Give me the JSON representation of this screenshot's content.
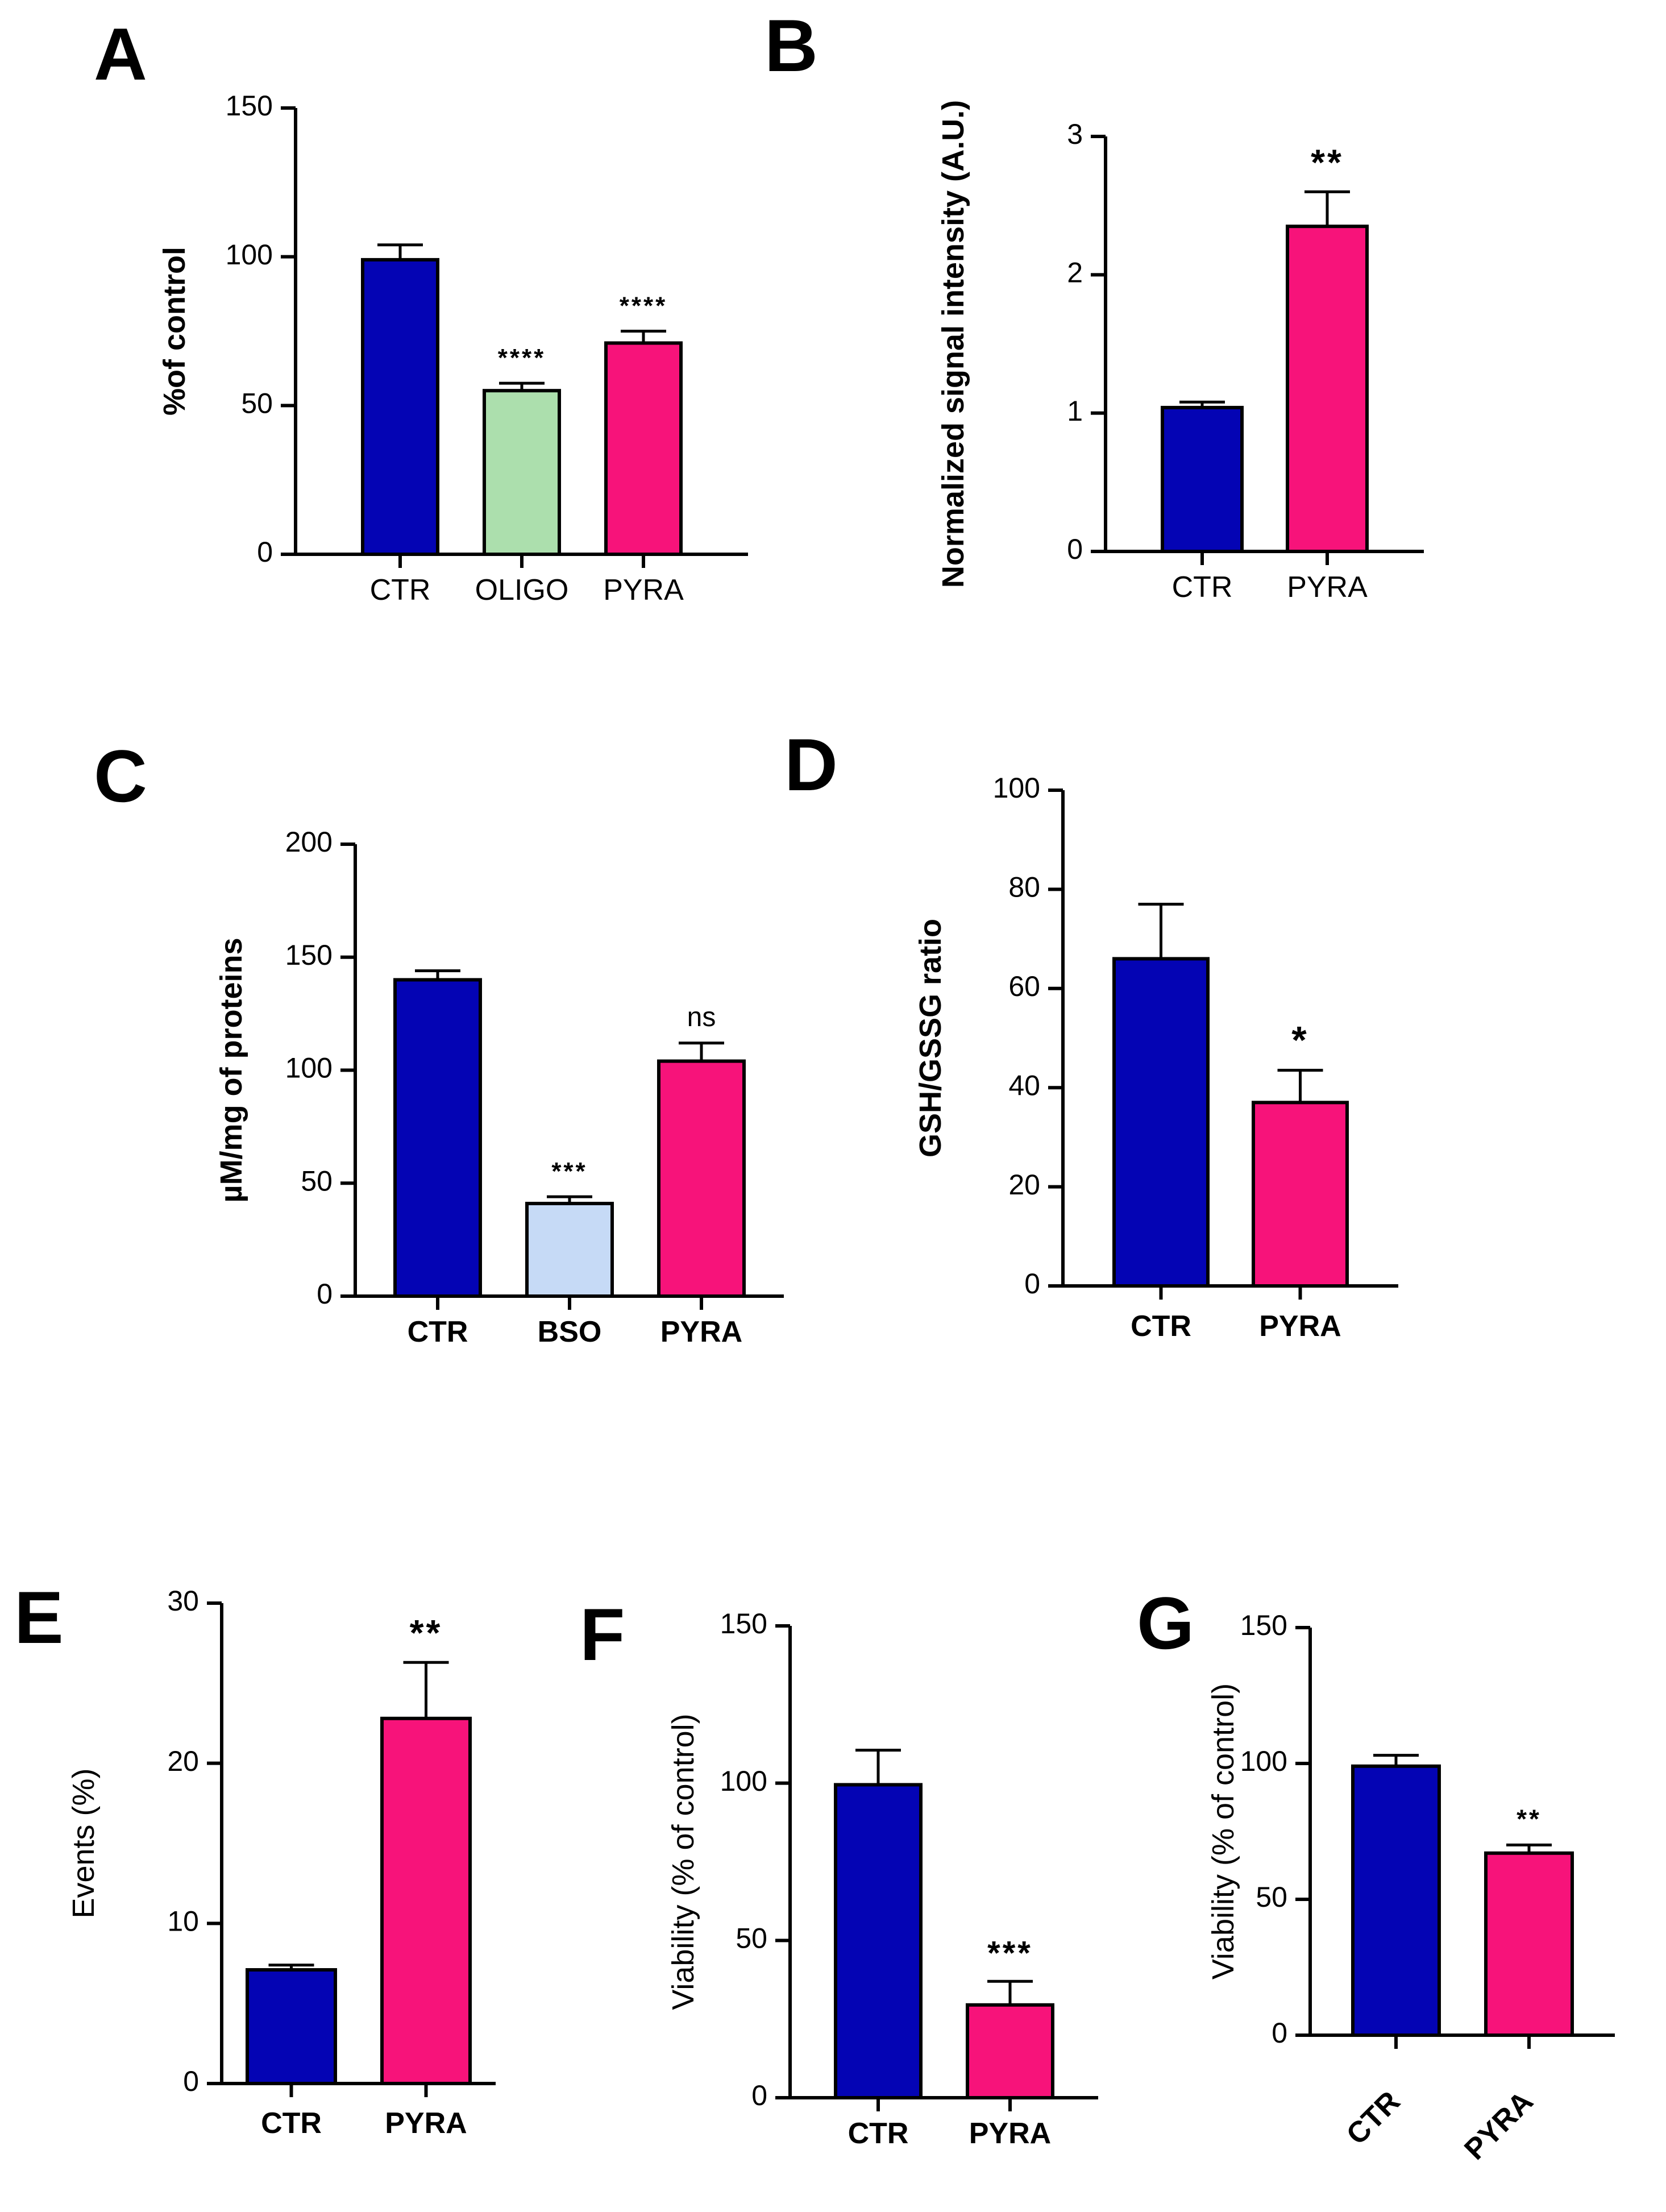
{
  "figure_title": "",
  "chart_data": [
    {
      "panel": "A",
      "type": "bar",
      "ylabel": "%of control",
      "ylim": [
        0,
        150
      ],
      "yticks": [
        0,
        50,
        100,
        150
      ],
      "categories": [
        "CTR",
        "OLIGO",
        "PYRA"
      ],
      "values": [
        99,
        55,
        71
      ],
      "errors": [
        5,
        2.5,
        4
      ],
      "colors": [
        "#0404b4",
        "#acdfad",
        "#f7137a"
      ],
      "significance": [
        "",
        "****",
        "****"
      ]
    },
    {
      "panel": "B",
      "type": "bar",
      "ylabel": "Normalized signal intensity (A.U.)",
      "ylim": [
        0,
        3
      ],
      "yticks": [
        0,
        1,
        2,
        3
      ],
      "categories": [
        "CTR",
        "PYRA"
      ],
      "values": [
        1.04,
        2.35
      ],
      "errors": [
        0.04,
        0.25
      ],
      "colors": [
        "#0404b4",
        "#f7137a"
      ],
      "significance": [
        "",
        "**"
      ]
    },
    {
      "panel": "C",
      "type": "bar",
      "ylabel": "µM/mg of proteins",
      "ylim": [
        0,
        200
      ],
      "yticks": [
        0,
        50,
        100,
        150,
        200
      ],
      "categories": [
        "CTR",
        "BSO",
        "PYRA"
      ],
      "values": [
        140,
        41,
        104
      ],
      "errors": [
        4,
        3,
        8
      ],
      "colors": [
        "#0404b4",
        "#c6daf6",
        "#f7137a"
      ],
      "significance": [
        "",
        "***",
        "ns"
      ]
    },
    {
      "panel": "D",
      "type": "bar",
      "ylabel": "GSH/GSSG ratio",
      "ylim": [
        0,
        100
      ],
      "yticks": [
        0,
        20,
        40,
        60,
        80,
        100
      ],
      "categories": [
        "CTR",
        "PYRA"
      ],
      "values": [
        66,
        37
      ],
      "errors": [
        11,
        6.5
      ],
      "colors": [
        "#0404b4",
        "#f7137a"
      ],
      "significance": [
        "",
        "*"
      ]
    },
    {
      "panel": "E",
      "type": "bar",
      "ylabel": "Events (%)",
      "ylim": [
        0,
        30
      ],
      "yticks": [
        0,
        10,
        20,
        30
      ],
      "categories": [
        "CTR",
        "PYRA"
      ],
      "values": [
        7.1,
        22.8
      ],
      "errors": [
        0.3,
        3.5
      ],
      "colors": [
        "#0404b4",
        "#f7137a"
      ],
      "significance": [
        "",
        "**"
      ]
    },
    {
      "panel": "F",
      "type": "bar",
      "ylabel": "Viability (% of control)",
      "ylim": [
        0,
        150
      ],
      "yticks": [
        0,
        50,
        100,
        150
      ],
      "categories": [
        "CTR",
        "PYRA"
      ],
      "values": [
        99.5,
        29.5
      ],
      "errors": [
        11,
        7.5
      ],
      "colors": [
        "#0404b4",
        "#f7137a"
      ],
      "significance": [
        "",
        "***"
      ]
    },
    {
      "panel": "G",
      "type": "bar",
      "ylabel": "Viability (% of control)",
      "ylim": [
        0,
        150
      ],
      "yticks": [
        0,
        50,
        100,
        150
      ],
      "categories": [
        "CTR",
        "PYRA"
      ],
      "values": [
        99,
        67
      ],
      "errors": [
        4,
        3
      ],
      "colors": [
        "#0404b4",
        "#f7137a"
      ],
      "significance": [
        "",
        "**"
      ]
    }
  ]
}
